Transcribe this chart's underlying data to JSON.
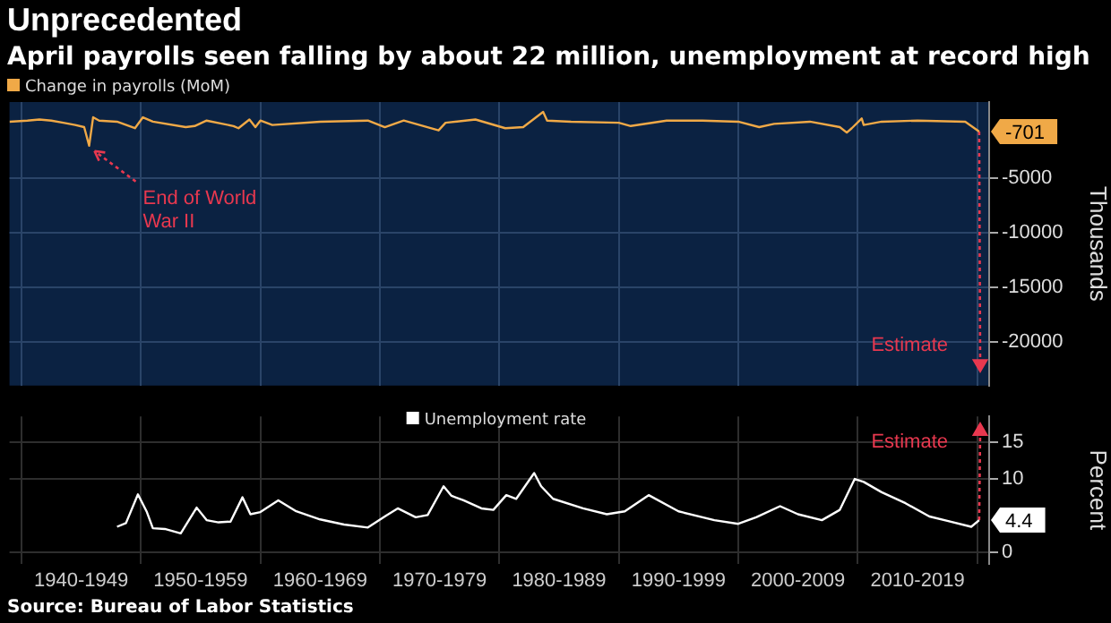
{
  "chart_data": [
    {
      "type": "line",
      "title": "Unprecedented",
      "subtitle": "April payrolls seen falling by about 22 million, unemployment at record high",
      "ylabel": "Thousands",
      "legend": "top left",
      "grid": true,
      "tick_labels": "y",
      "xlim": [
        "1939-01",
        "2021-01"
      ],
      "xticks": [
        {
          "value": "1940",
          "label": null
        },
        {
          "value": "1950",
          "label": null
        },
        {
          "value": "1960",
          "label": null
        },
        {
          "value": "1970",
          "label": null
        },
        {
          "value": "1980",
          "label": null
        },
        {
          "value": "1990",
          "label": null
        },
        {
          "value": "2000",
          "label": null
        },
        {
          "value": "2010",
          "label": null
        },
        {
          "value": "2020",
          "label": null
        }
      ],
      "ylim": [
        -24000,
        2000
      ],
      "yticks": [
        -20000,
        -15000,
        -10000,
        -5000
      ],
      "series": [
        {
          "name": "Change in payrolls (MoM)",
          "color": "#f0a947",
          "x": [
            "1939-01",
            "1940-07",
            "1941-07",
            "1942-07",
            "1943-07",
            "1944-07",
            "1945-04",
            "1945-09",
            "1946-01",
            "1946-07",
            "1948-01",
            "1949-07",
            "1950-03",
            "1951-01",
            "1953-10",
            "1954-07",
            "1955-07",
            "1957-10",
            "1958-03",
            "1959-02",
            "1959-08",
            "1960-01",
            "1961-01",
            "1965-01",
            "1969-01",
            "1970-06",
            "1972-01",
            "1974-12",
            "1975-07",
            "1978-01",
            "1980-07",
            "1982-01",
            "1983-09",
            "1984-01",
            "1986-01",
            "1990-01",
            "1991-01",
            "1994-01",
            "1997-01",
            "2000-01",
            "2001-10",
            "2003-01",
            "2006-01",
            "2008-07",
            "2009-02",
            "2009-07",
            "2010-05",
            "2010-07",
            "2012-01",
            "2015-01",
            "2019-01",
            "2020-03"
          ],
          "values": [
            200,
            300,
            400,
            300,
            100,
            -100,
            -300,
            -2000,
            600,
            300,
            200,
            -400,
            600,
            200,
            -300,
            -200,
            300,
            -200,
            -400,
            400,
            -300,
            300,
            -100,
            200,
            300,
            -300,
            300,
            -600,
            100,
            400,
            -400,
            -300,
            1100,
            300,
            200,
            100,
            -200,
            300,
            300,
            200,
            -300,
            0,
            200,
            -300,
            -800,
            -400,
            500,
            -100,
            200,
            300,
            200,
            -701
          ],
          "value_labels": [
            null,
            null,
            null,
            null,
            null,
            null,
            null,
            null,
            null,
            null,
            null,
            null,
            null,
            null,
            null,
            null,
            null,
            null,
            null,
            null,
            null,
            null,
            null,
            null,
            null,
            null,
            null,
            null,
            null,
            null,
            null,
            null,
            null,
            null,
            null,
            null,
            null,
            null,
            null,
            null,
            null,
            null,
            null,
            null,
            null,
            null,
            null,
            null,
            null,
            null,
            null,
            "-701"
          ]
        },
        {
          "name": "Estimate",
          "color": "#e8384f",
          "line_style": "dotted",
          "marker": "triangle",
          "x": [
            "2020-03",
            "2020-04"
          ],
          "values": [
            -701,
            -22000
          ]
        }
      ],
      "annotations": [
        {
          "text": "End of World War II",
          "x": "1945-09",
          "y": -2000
        }
      ]
    },
    {
      "type": "line",
      "ylabel": "Percent",
      "legend": "top",
      "grid": true,
      "xlim": [
        "1939-01",
        "2021-01"
      ],
      "xticks": [
        {
          "value": "1940",
          "label": null
        },
        {
          "value": "1945",
          "label": "1940-1949"
        },
        {
          "value": "1950",
          "label": null
        },
        {
          "value": "1955",
          "label": "1950-1959"
        },
        {
          "value": "1960",
          "label": null
        },
        {
          "value": "1965",
          "label": "1960-1969"
        },
        {
          "value": "1970",
          "label": null
        },
        {
          "value": "1975",
          "label": "1970-1979"
        },
        {
          "value": "1980",
          "label": null
        },
        {
          "value": "1985",
          "label": "1980-1989"
        },
        {
          "value": "1990",
          "label": null
        },
        {
          "value": "1995",
          "label": "1990-1999"
        },
        {
          "value": "2000",
          "label": null
        },
        {
          "value": "2005",
          "label": "2000-2009"
        },
        {
          "value": "2010",
          "label": null
        },
        {
          "value": "2015",
          "label": "2010-2019"
        },
        {
          "value": "2020",
          "label": null
        }
      ],
      "ylim": [
        -1.5,
        18.5
      ],
      "yticks": [
        0,
        10,
        15
      ],
      "series": [
        {
          "name": "Unemployment rate",
          "color": "#ffffff",
          "x": [
            "1948-01",
            "1948-10",
            "1949-10",
            "1950-07",
            "1951-01",
            "1952-01",
            "1953-05",
            "1954-09",
            "1955-07",
            "1956-07",
            "1957-07",
            "1958-07",
            "1959-03",
            "1960-01",
            "1961-07",
            "1963-01",
            "1965-01",
            "1967-01",
            "1969-01",
            "1970-07",
            "1971-07",
            "1973-01",
            "1974-01",
            "1975-05",
            "1976-01",
            "1977-01",
            "1978-07",
            "1979-07",
            "1980-08",
            "1981-06",
            "1982-12",
            "1983-07",
            "1984-07",
            "1987-01",
            "1989-01",
            "1990-07",
            "1992-07",
            "1995-01",
            "1998-01",
            "2000-01",
            "2001-07",
            "2003-07",
            "2005-01",
            "2007-01",
            "2008-07",
            "2009-10",
            "2010-07",
            "2012-01",
            "2014-01",
            "2016-01",
            "2017-07",
            "2019-07",
            "2020-03"
          ],
          "values": [
            3.5,
            4,
            7.9,
            5.5,
            3.3,
            3.2,
            2.6,
            6.1,
            4.4,
            4.1,
            4.2,
            7.5,
            5.2,
            5.5,
            7.1,
            5.6,
            4.5,
            3.8,
            3.4,
            5,
            6,
            4.8,
            5.1,
            9,
            7.7,
            7.1,
            6,
            5.8,
            7.8,
            7.3,
            10.8,
            9,
            7.3,
            6,
            5.2,
            5.6,
            7.8,
            5.6,
            4.4,
            3.9,
            4.8,
            6.3,
            5.2,
            4.4,
            5.8,
            10,
            9.6,
            8.2,
            6.7,
            4.9,
            4.3,
            3.5,
            4.4
          ],
          "value_labels": [
            null,
            null,
            null,
            null,
            null,
            null,
            null,
            null,
            null,
            null,
            null,
            null,
            null,
            null,
            null,
            null,
            null,
            null,
            null,
            null,
            null,
            null,
            null,
            null,
            null,
            null,
            null,
            null,
            null,
            null,
            null,
            null,
            null,
            null,
            null,
            null,
            null,
            null,
            null,
            null,
            null,
            null,
            null,
            null,
            null,
            null,
            null,
            null,
            null,
            null,
            null,
            null,
            "4.4"
          ]
        },
        {
          "name": "Estimate",
          "color": "#e8384f",
          "line_style": "dotted",
          "marker": "triangle",
          "x": [
            "2020-03",
            "2020-04"
          ],
          "values": [
            4.4,
            16.5
          ]
        }
      ],
      "annotations": [
        "Source: Bureau of Labor Statistics"
      ]
    }
  ]
}
